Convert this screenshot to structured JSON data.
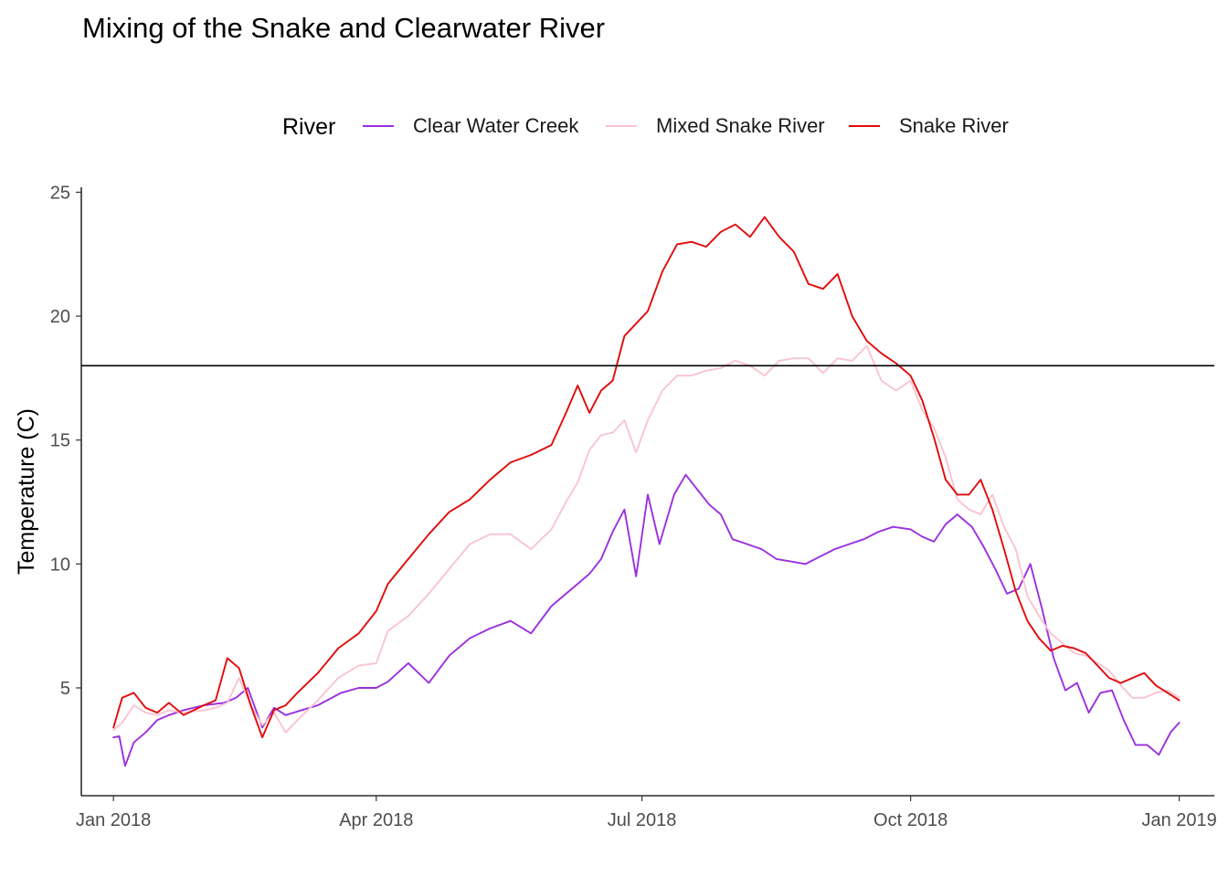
{
  "chart_data": {
    "type": "line",
    "title": "Mixing of the Snake and Clearwater River",
    "xlabel": "",
    "ylabel": "Temperature (C)",
    "legend": {
      "title": "River",
      "position": "top"
    },
    "grid": false,
    "xlim": [
      "2017-12-21",
      "2019-01-13"
    ],
    "ylim": [
      0.65,
      25.2
    ],
    "x_ticks": [
      "2018-01-01",
      "2018-04-01",
      "2018-07-01",
      "2018-10-01",
      "2019-01-01"
    ],
    "x_tick_labels": [
      "Jan 2018",
      "Apr 2018",
      "Jul 2018",
      "Oct 2018",
      "Jan 2019"
    ],
    "y_ticks": [
      5,
      10,
      15,
      20,
      25
    ],
    "y_tick_labels": [
      "5",
      "10",
      "15",
      "20",
      "25"
    ],
    "reference_line": {
      "orientation": "horizontal",
      "y": 18,
      "color": "#000000"
    },
    "series": [
      {
        "name": "Clear Water Creek",
        "color": "#9b30e0",
        "x": [
          "2018-01-01",
          "2018-01-03",
          "2018-01-05",
          "2018-01-08",
          "2018-01-12",
          "2018-01-16",
          "2018-01-20",
          "2018-01-25",
          "2018-02-01",
          "2018-02-08",
          "2018-02-12",
          "2018-02-16",
          "2018-02-21",
          "2018-02-25",
          "2018-03-01",
          "2018-03-05",
          "2018-03-12",
          "2018-03-20",
          "2018-03-26",
          "2018-04-01",
          "2018-04-05",
          "2018-04-12",
          "2018-04-19",
          "2018-04-26",
          "2018-05-03",
          "2018-05-10",
          "2018-05-17",
          "2018-05-24",
          "2018-05-31",
          "2018-06-05",
          "2018-06-09",
          "2018-06-13",
          "2018-06-17",
          "2018-06-21",
          "2018-06-25",
          "2018-06-29",
          "2018-07-03",
          "2018-07-07",
          "2018-07-12",
          "2018-07-16",
          "2018-07-20",
          "2018-07-24",
          "2018-07-28",
          "2018-08-01",
          "2018-08-06",
          "2018-08-11",
          "2018-08-16",
          "2018-08-21",
          "2018-08-26",
          "2018-08-31",
          "2018-09-05",
          "2018-09-10",
          "2018-09-15",
          "2018-09-20",
          "2018-09-25",
          "2018-10-01",
          "2018-10-05",
          "2018-10-09",
          "2018-10-13",
          "2018-10-17",
          "2018-10-22",
          "2018-10-26",
          "2018-10-30",
          "2018-11-03",
          "2018-11-07",
          "2018-11-11",
          "2018-11-15",
          "2018-11-19",
          "2018-11-23",
          "2018-11-27",
          "2018-12-01",
          "2018-12-05",
          "2018-12-09",
          "2018-12-13",
          "2018-12-17",
          "2018-12-21",
          "2018-12-25",
          "2018-12-29",
          "2019-01-01"
        ],
        "y": [
          3.0,
          3.05,
          1.85,
          2.8,
          3.2,
          3.7,
          3.9,
          4.1,
          4.3,
          4.4,
          4.6,
          5.0,
          3.4,
          4.2,
          3.9,
          4.05,
          4.3,
          4.8,
          5.0,
          5.0,
          5.25,
          6.0,
          5.2,
          6.3,
          7.0,
          7.4,
          7.7,
          7.2,
          8.3,
          8.8,
          9.2,
          9.6,
          10.2,
          11.3,
          12.2,
          9.5,
          12.8,
          10.8,
          12.8,
          13.6,
          13.0,
          12.4,
          12.0,
          11.0,
          10.8,
          10.6,
          10.2,
          10.1,
          10.0,
          10.3,
          10.6,
          10.8,
          11.0,
          11.3,
          11.5,
          11.4,
          11.1,
          10.9,
          11.6,
          12.0,
          11.5,
          10.7,
          9.8,
          8.8,
          9.0,
          10.0,
          8.2,
          6.2,
          4.9,
          5.2,
          4.0,
          4.8,
          4.9,
          3.7,
          2.7,
          2.7,
          2.3,
          3.2,
          3.6
        ]
      },
      {
        "name": "Mixed Snake River",
        "color": "#f9c4cf",
        "x": [
          "2018-01-01",
          "2018-01-04",
          "2018-01-08",
          "2018-01-12",
          "2018-01-16",
          "2018-01-20",
          "2018-01-25",
          "2018-02-01",
          "2018-02-05",
          "2018-02-09",
          "2018-02-13",
          "2018-02-17",
          "2018-02-21",
          "2018-02-25",
          "2018-03-01",
          "2018-03-05",
          "2018-03-12",
          "2018-03-19",
          "2018-03-26",
          "2018-04-01",
          "2018-04-05",
          "2018-04-12",
          "2018-04-19",
          "2018-04-26",
          "2018-05-03",
          "2018-05-10",
          "2018-05-17",
          "2018-05-24",
          "2018-05-31",
          "2018-06-05",
          "2018-06-09",
          "2018-06-13",
          "2018-06-17",
          "2018-06-21",
          "2018-06-25",
          "2018-06-29",
          "2018-07-03",
          "2018-07-08",
          "2018-07-13",
          "2018-07-18",
          "2018-07-23",
          "2018-07-28",
          "2018-08-02",
          "2018-08-07",
          "2018-08-12",
          "2018-08-17",
          "2018-08-22",
          "2018-08-27",
          "2018-09-01",
          "2018-09-06",
          "2018-09-11",
          "2018-09-16",
          "2018-09-21",
          "2018-09-26",
          "2018-10-01",
          "2018-10-05",
          "2018-10-09",
          "2018-10-13",
          "2018-10-17",
          "2018-10-21",
          "2018-10-25",
          "2018-10-29",
          "2018-11-02",
          "2018-11-06",
          "2018-11-10",
          "2018-11-14",
          "2018-11-18",
          "2018-11-22",
          "2018-11-26",
          "2018-11-30",
          "2018-12-04",
          "2018-12-08",
          "2018-12-12",
          "2018-12-16",
          "2018-12-20",
          "2018-12-24",
          "2018-12-28",
          "2019-01-01"
        ],
        "y": [
          3.3,
          3.6,
          4.3,
          4.0,
          3.9,
          4.1,
          4.0,
          4.1,
          4.2,
          4.4,
          5.4,
          4.3,
          3.5,
          4.0,
          3.2,
          3.7,
          4.5,
          5.4,
          5.9,
          6.0,
          7.3,
          7.9,
          8.8,
          9.8,
          10.8,
          11.2,
          11.2,
          10.6,
          11.4,
          12.5,
          13.3,
          14.6,
          15.2,
          15.3,
          15.8,
          14.5,
          15.8,
          17.0,
          17.6,
          17.6,
          17.8,
          17.9,
          18.2,
          18.0,
          17.6,
          18.2,
          18.3,
          18.3,
          17.7,
          18.3,
          18.2,
          18.8,
          17.4,
          17.0,
          17.4,
          16.2,
          15.5,
          14.3,
          12.6,
          12.2,
          12.0,
          12.8,
          11.5,
          10.6,
          8.7,
          7.9,
          7.2,
          6.8,
          6.4,
          6.3,
          6.0,
          5.7,
          5.1,
          4.6,
          4.6,
          4.8,
          4.9,
          4.6
        ]
      },
      {
        "name": "Snake River",
        "color": "#e00b0b",
        "x": [
          "2018-01-01",
          "2018-01-04",
          "2018-01-08",
          "2018-01-12",
          "2018-01-16",
          "2018-01-20",
          "2018-01-25",
          "2018-02-01",
          "2018-02-05",
          "2018-02-09",
          "2018-02-13",
          "2018-02-17",
          "2018-02-21",
          "2018-02-25",
          "2018-03-01",
          "2018-03-05",
          "2018-03-12",
          "2018-03-19",
          "2018-03-26",
          "2018-04-01",
          "2018-04-05",
          "2018-04-12",
          "2018-04-19",
          "2018-04-26",
          "2018-05-03",
          "2018-05-10",
          "2018-05-17",
          "2018-05-24",
          "2018-05-31",
          "2018-06-05",
          "2018-06-09",
          "2018-06-13",
          "2018-06-17",
          "2018-06-21",
          "2018-06-25",
          "2018-06-29",
          "2018-07-03",
          "2018-07-08",
          "2018-07-13",
          "2018-07-18",
          "2018-07-23",
          "2018-07-28",
          "2018-08-02",
          "2018-08-07",
          "2018-08-12",
          "2018-08-17",
          "2018-08-22",
          "2018-08-27",
          "2018-09-01",
          "2018-09-06",
          "2018-09-11",
          "2018-09-16",
          "2018-09-21",
          "2018-09-26",
          "2018-10-01",
          "2018-10-05",
          "2018-10-09",
          "2018-10-13",
          "2018-10-17",
          "2018-10-21",
          "2018-10-25",
          "2018-10-29",
          "2018-11-02",
          "2018-11-06",
          "2018-11-10",
          "2018-11-14",
          "2018-11-18",
          "2018-11-22",
          "2018-11-26",
          "2018-11-30",
          "2018-12-04",
          "2018-12-08",
          "2018-12-12",
          "2018-12-16",
          "2018-12-20",
          "2018-12-24",
          "2018-12-28",
          "2019-01-01"
        ],
        "y": [
          3.4,
          4.6,
          4.8,
          4.2,
          4.0,
          4.4,
          3.9,
          4.3,
          4.5,
          6.2,
          5.8,
          4.3,
          3.0,
          4.1,
          4.3,
          4.8,
          5.6,
          6.6,
          7.2,
          8.1,
          9.2,
          10.2,
          11.2,
          12.1,
          12.6,
          13.4,
          14.1,
          14.4,
          14.8,
          16.1,
          17.2,
          16.1,
          17.0,
          17.4,
          19.2,
          19.7,
          20.2,
          21.8,
          22.9,
          23.0,
          22.8,
          23.4,
          23.7,
          23.2,
          24.0,
          23.2,
          22.6,
          21.3,
          21.1,
          21.7,
          20.0,
          19.0,
          18.5,
          18.1,
          17.6,
          16.6,
          15.1,
          13.4,
          12.8,
          12.8,
          13.4,
          12.2,
          10.6,
          8.9,
          7.7,
          7.0,
          6.5,
          6.7,
          6.6,
          6.4,
          5.9,
          5.4,
          5.2,
          5.4,
          5.6,
          5.1,
          4.8,
          4.5
        ]
      }
    ]
  }
}
